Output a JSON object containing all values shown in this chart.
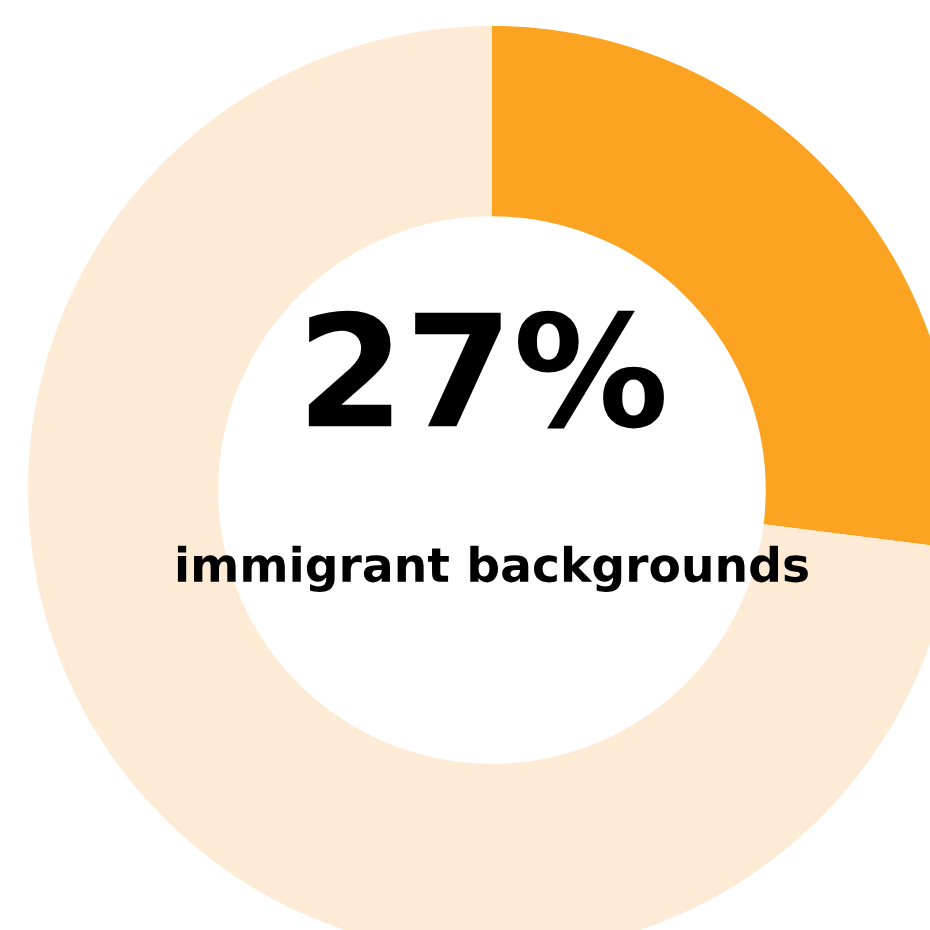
{
  "chart_data": {
    "type": "donut",
    "categories": [
      null,
      null
    ],
    "values": [
      27,
      73
    ],
    "colors": [
      "#fca321",
      "#feebd5"
    ],
    "value_labels": [
      "27%",
      null
    ],
    "annotations": [
      "immigrant backgrounds"
    ],
    "legend": false
  }
}
